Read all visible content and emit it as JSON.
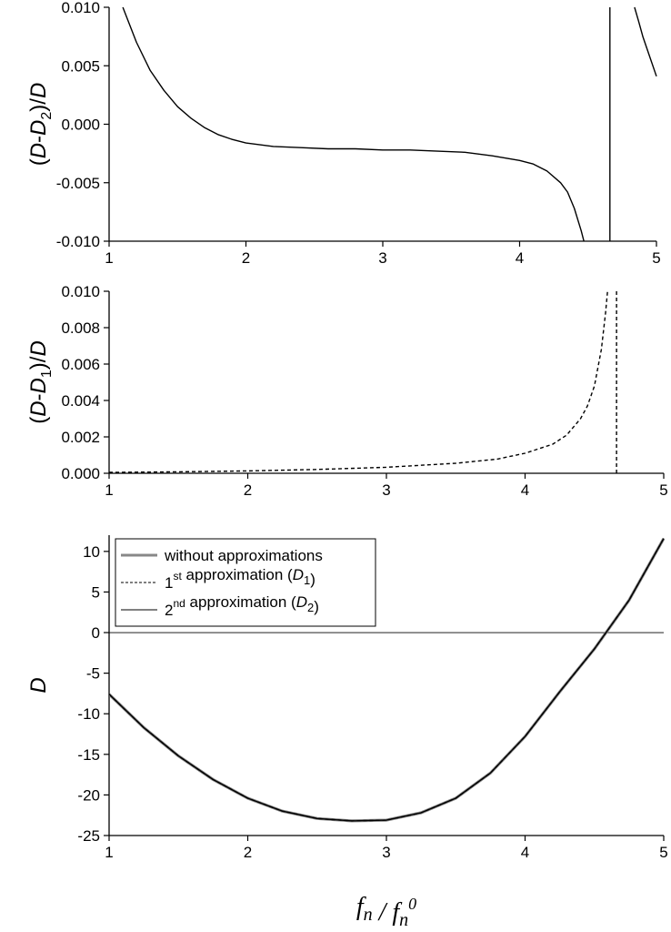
{
  "chart_data": [
    {
      "type": "line",
      "ylabel_parts": [
        "(",
        "D",
        "-",
        "D",
        "2",
        ")/",
        "D"
      ],
      "xlim": [
        1,
        5
      ],
      "ylim": [
        -0.01,
        0.01
      ],
      "x_ticks": [
        1,
        2,
        3,
        4,
        5
      ],
      "x_tick_labels": [
        "1",
        "2",
        "3",
        "4",
        "5"
      ],
      "y_ticks": [
        -0.01,
        -0.005,
        0,
        0.005,
        0.01
      ],
      "y_tick_labels": [
        "-0.010",
        "-0.005",
        "0.000",
        "0.005",
        "0.010"
      ],
      "series": [
        {
          "style": "solid",
          "color": "#000000",
          "segments": [
            [
              [
                1.1,
                0.01
              ],
              [
                1.2,
                0.007
              ],
              [
                1.3,
                0.0046
              ],
              [
                1.4,
                0.0029
              ],
              [
                1.5,
                0.0015
              ],
              [
                1.6,
                0.0005
              ],
              [
                1.7,
                -0.0003
              ],
              [
                1.8,
                -0.0009
              ],
              [
                1.9,
                -0.0013
              ],
              [
                2.0,
                -0.0016
              ],
              [
                2.2,
                -0.0019
              ],
              [
                2.4,
                -0.002
              ],
              [
                2.6,
                -0.0021
              ],
              [
                2.8,
                -0.0021
              ],
              [
                3.0,
                -0.0022
              ],
              [
                3.2,
                -0.0022
              ],
              [
                3.4,
                -0.0023
              ],
              [
                3.6,
                -0.0024
              ],
              [
                3.8,
                -0.0027
              ],
              [
                4.0,
                -0.0031
              ],
              [
                4.1,
                -0.0034
              ],
              [
                4.2,
                -0.004
              ],
              [
                4.3,
                -0.005
              ],
              [
                4.35,
                -0.0058
              ],
              [
                4.4,
                -0.0072
              ],
              [
                4.45,
                -0.0091
              ],
              [
                4.47,
                -0.01
              ]
            ],
            [
              [
                4.66,
                -0.01
              ],
              [
                4.66,
                0.01
              ]
            ],
            [
              [
                4.84,
                0.01
              ],
              [
                4.87,
                0.0088
              ],
              [
                4.9,
                0.0075
              ],
              [
                4.95,
                0.0058
              ],
              [
                5.0,
                0.0041
              ]
            ]
          ]
        }
      ]
    },
    {
      "type": "line",
      "ylabel_parts": [
        "(",
        "D",
        "-",
        "D",
        "1",
        ")/",
        "D"
      ],
      "xlim": [
        1,
        5
      ],
      "ylim": [
        0,
        0.01
      ],
      "x_ticks": [
        1,
        2,
        3,
        4,
        5
      ],
      "x_tick_labels": [
        "1",
        "2",
        "3",
        "4",
        "5"
      ],
      "y_ticks": [
        0,
        0.002,
        0.004,
        0.006,
        0.008,
        0.01
      ],
      "y_tick_labels": [
        "0.000",
        "0.002",
        "0.004",
        "0.006",
        "0.008",
        "0.010"
      ],
      "series": [
        {
          "style": "dashed",
          "color": "#000000",
          "segments": [
            [
              [
                1.0,
                5e-05
              ],
              [
                1.5,
                8e-05
              ],
              [
                2.0,
                0.00013
              ],
              [
                2.5,
                0.00021
              ],
              [
                3.0,
                0.00033
              ],
              [
                3.5,
                0.00055
              ],
              [
                3.8,
                0.00078
              ],
              [
                4.0,
                0.0011
              ],
              [
                4.2,
                0.0016
              ],
              [
                4.3,
                0.0021
              ],
              [
                4.4,
                0.003
              ],
              [
                4.45,
                0.0037
              ],
              [
                4.5,
                0.0048
              ],
              [
                4.55,
                0.0068
              ],
              [
                4.58,
                0.0088
              ],
              [
                4.595,
                0.01
              ]
            ],
            [
              [
                4.66,
                0.01
              ],
              [
                4.66,
                0.0
              ]
            ]
          ]
        }
      ]
    },
    {
      "type": "line",
      "ylabel": "D",
      "xlim": [
        1,
        5
      ],
      "ylim": [
        -25,
        12
      ],
      "x_ticks": [
        1,
        2,
        3,
        4,
        5
      ],
      "x_tick_labels": [
        "1",
        "2",
        "3",
        "4",
        "5"
      ],
      "y_ticks": [
        -25,
        -20,
        -15,
        -10,
        -5,
        0,
        5,
        10
      ],
      "y_tick_labels": [
        "-25",
        "-20",
        "-15",
        "-10",
        "-5",
        "0",
        "5",
        "10"
      ],
      "zero_line": true,
      "legend_position": "top-left",
      "legend": [
        {
          "style": "thick-gray",
          "parts": [
            {
              "t": "without approximations"
            }
          ]
        },
        {
          "style": "dashed",
          "parts": [
            {
              "t": "1"
            },
            {
              "t": "st",
              "sup": true
            },
            {
              "t": " approximation ("
            },
            {
              "t": "D",
              "it": true
            },
            {
              "t": "1",
              "sub": true
            },
            {
              "t": ")"
            }
          ]
        },
        {
          "style": "solid",
          "parts": [
            {
              "t": "2"
            },
            {
              "t": "nd",
              "sup": true
            },
            {
              "t": " approximation ("
            },
            {
              "t": "D",
              "it": true
            },
            {
              "t": "2",
              "sub": true
            },
            {
              "t": ")"
            }
          ]
        }
      ],
      "series": [
        {
          "style": "thick-gray",
          "color": "#888888",
          "x": [
            1.0,
            1.25,
            1.5,
            1.75,
            2.0,
            2.25,
            2.5,
            2.75,
            3.0,
            3.25,
            3.5,
            3.75,
            4.0,
            4.25,
            4.5,
            4.75,
            5.0
          ],
          "y": [
            -7.6,
            -11.7,
            -15.2,
            -18.1,
            -20.4,
            -22.0,
            -22.9,
            -23.2,
            -23.1,
            -22.2,
            -20.4,
            -17.3,
            -12.8,
            -7.3,
            -2.0,
            4.0,
            11.6
          ]
        },
        {
          "style": "dashed",
          "color": "#000000",
          "x": [
            1.0,
            1.25,
            1.5,
            1.75,
            2.0,
            2.25,
            2.5,
            2.75,
            3.0,
            3.25,
            3.5,
            3.75,
            4.0,
            4.25,
            4.5,
            4.75,
            5.0
          ],
          "y": [
            -7.6,
            -11.7,
            -15.2,
            -18.1,
            -20.4,
            -22.0,
            -22.9,
            -23.2,
            -23.1,
            -22.2,
            -20.4,
            -17.3,
            -12.8,
            -7.3,
            -2.0,
            4.0,
            11.6
          ]
        },
        {
          "style": "solid",
          "color": "#000000",
          "x": [
            1.0,
            1.25,
            1.5,
            1.75,
            2.0,
            2.25,
            2.5,
            2.75,
            3.0,
            3.25,
            3.5,
            3.75,
            4.0,
            4.25,
            4.5,
            4.75,
            5.0
          ],
          "y": [
            -7.6,
            -11.7,
            -15.2,
            -18.1,
            -20.4,
            -22.0,
            -22.9,
            -23.2,
            -23.1,
            -22.2,
            -20.4,
            -17.3,
            -12.8,
            -7.3,
            -2.0,
            4.0,
            11.6
          ]
        }
      ]
    }
  ],
  "shared_xlabel_parts": [
    {
      "t": "f"
    },
    {
      "t": "n",
      "sub": true
    },
    {
      "t": " / "
    },
    {
      "t": "f"
    },
    {
      "t": "n",
      "sub": true
    },
    {
      "t": "0",
      "sup": true
    }
  ]
}
